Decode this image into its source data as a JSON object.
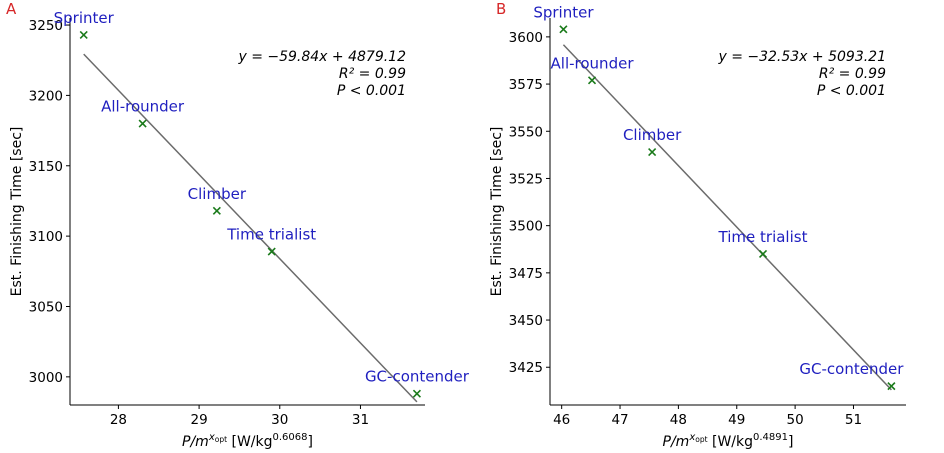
{
  "colors": {
    "panel_label": "#d62728",
    "point_label": "#1f1fbf",
    "marker": "#1a7a1a",
    "fit_line": "#6b6b6b"
  },
  "chart_data": [
    {
      "type": "scatter",
      "panel": "A",
      "ylabel": "Est. Finishing Time [sec]",
      "xlabel_main": "P/m",
      "xlabel_sup": "x",
      "xlabel_sub": "opt",
      "xlabel_unit": "[W/kg",
      "xlabel_unit_exp": "0.6068",
      "xlabel_close": "]",
      "xlim": [
        27.4,
        31.8
      ],
      "ylim": [
        2980,
        3255
      ],
      "xticks": [
        28,
        29,
        30,
        31
      ],
      "yticks": [
        3000,
        3050,
        3100,
        3150,
        3200,
        3250
      ],
      "points": [
        {
          "label": "Sprinter",
          "x": 27.57,
          "y": 3243
        },
        {
          "label": "All-rounder",
          "x": 28.3,
          "y": 3180
        },
        {
          "label": "Climber",
          "x": 29.22,
          "y": 3118
        },
        {
          "label": "Time trialist",
          "x": 29.9,
          "y": 3089
        },
        {
          "label": "GC-contender",
          "x": 31.7,
          "y": 2988
        }
      ],
      "fit": {
        "slope": -59.84,
        "intercept": 4879.12,
        "x_range": [
          27.57,
          31.7
        ]
      },
      "equation": "y = −59.84x + 4879.12",
      "r2_text": "R² = 0.99",
      "p_text": "P < 0.001",
      "grid": false
    },
    {
      "type": "scatter",
      "panel": "B",
      "ylabel": "Est. Finishing Time [sec]",
      "xlabel_main": "P/m",
      "xlabel_sup": "x",
      "xlabel_sub": "opt",
      "xlabel_unit": "[W/kg",
      "xlabel_unit_exp": "0.4891",
      "xlabel_close": "]",
      "xlim": [
        45.8,
        51.9
      ],
      "ylim": [
        3405,
        3610
      ],
      "xticks": [
        46,
        47,
        48,
        49,
        50,
        51
      ],
      "yticks": [
        3425,
        3450,
        3475,
        3500,
        3525,
        3550,
        3575,
        3600
      ],
      "points": [
        {
          "label": "Sprinter",
          "x": 46.03,
          "y": 3604
        },
        {
          "label": "All-rounder",
          "x": 46.52,
          "y": 3577
        },
        {
          "label": "Climber",
          "x": 47.55,
          "y": 3539
        },
        {
          "label": "Time trialist",
          "x": 49.45,
          "y": 3485
        },
        {
          "label": "GC-contender",
          "x": 51.65,
          "y": 3415
        }
      ],
      "fit": {
        "slope": -32.53,
        "intercept": 5093.21,
        "x_range": [
          46.03,
          51.65
        ]
      },
      "equation": "y = −32.53x + 5093.21",
      "r2_text": "R² = 0.99",
      "p_text": "P < 0.001",
      "grid": false
    }
  ]
}
